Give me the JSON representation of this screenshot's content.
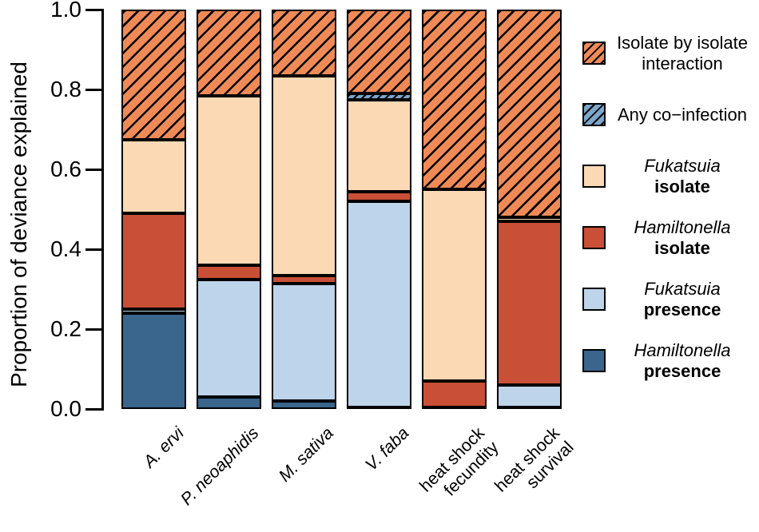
{
  "figure": {
    "y_axis": {
      "title": "Proportion of deviance explained",
      "tick_labels": [
        "0.0",
        "0.2",
        "0.4",
        "0.6",
        "0.8",
        "1.0"
      ]
    },
    "colors": {
      "hamiltonella_presence": "#3A658C",
      "fukatsuia_presence": "#BED4EA",
      "hamiltonella_isolate": "#C94F36",
      "fukatsuia_isolate": "#FBD9B5",
      "any_coinfection": "#7BA7CC",
      "isolate_interaction": "#EF8A57",
      "stroke": "#000000"
    },
    "legend": {
      "items": [
        {
          "key": "isolate-by-isolate-interaction",
          "swatch": "hatched",
          "swatch_color": "#EF8A57",
          "lines": [
            {
              "text": "Isolate by isolate"
            },
            {
              "text": "interaction"
            }
          ]
        },
        {
          "key": "any-co-infection",
          "swatch": "hatched",
          "swatch_color": "#7BA7CC",
          "lines": [
            {
              "text": "Any co−infection"
            }
          ]
        },
        {
          "key": "fukatsuia-isolate",
          "swatch": "solid",
          "swatch_color": "#FBD9B5",
          "lines": [
            {
              "text": "Fukatsuia",
              "italic": true
            },
            {
              "text": "isolate",
              "bold": true
            }
          ]
        },
        {
          "key": "hamiltonella-isolate",
          "swatch": "solid",
          "swatch_color": "#C94F36",
          "lines": [
            {
              "text": "Hamiltonella",
              "italic": true
            },
            {
              "text": "isolate",
              "bold": true
            }
          ]
        },
        {
          "key": "fukatsuia-presence",
          "swatch": "solid",
          "swatch_color": "#BED4EA",
          "lines": [
            {
              "text": "Fukatsuia",
              "italic": true
            },
            {
              "text": "presence",
              "bold": true
            }
          ]
        },
        {
          "key": "hamiltonella-presence",
          "swatch": "solid",
          "swatch_color": "#3A658C",
          "lines": [
            {
              "text": "Hamiltonella",
              "italic": true
            },
            {
              "text": "presence",
              "bold": true
            }
          ]
        }
      ]
    }
  },
  "chart_data": {
    "type": "bar",
    "stacked": true,
    "title": "",
    "xlabel": "",
    "ylabel": "Proportion of deviance explained",
    "ylim": [
      0,
      1.0
    ],
    "yticks": [
      0,
      0.2,
      0.4,
      0.6,
      0.8,
      1.0
    ],
    "grid": false,
    "legend_position": "right",
    "categories": [
      "A. ervi",
      "P. neoaphidis",
      "M. sativa",
      "V. faba",
      "heat shock fecundity",
      "heat shock survival"
    ],
    "category_labels": [
      {
        "lines": [
          "A. ervi"
        ],
        "italic": true
      },
      {
        "lines": [
          "P. neoaphidis"
        ],
        "italic": true
      },
      {
        "lines": [
          "M. sativa"
        ],
        "italic": true
      },
      {
        "lines": [
          "V. faba"
        ],
        "italic": true
      },
      {
        "lines": [
          "heat shock",
          "fecundity"
        ],
        "italic": false
      },
      {
        "lines": [
          "heat shock",
          "survival"
        ],
        "italic": false
      }
    ],
    "series": [
      {
        "name": "Hamiltonella presence",
        "color": "#3A658C",
        "pattern": "solid",
        "values": [
          0.24,
          0.03,
          0.02,
          0.005,
          0.005,
          0.005
        ]
      },
      {
        "name": "Fukatsuia presence",
        "color": "#BED4EA",
        "pattern": "solid",
        "values": [
          0.01,
          0.295,
          0.295,
          0.515,
          0,
          0.055
        ]
      },
      {
        "name": "Hamiltonella isolate",
        "color": "#C94F36",
        "pattern": "solid",
        "values": [
          0.24,
          0.035,
          0.02,
          0.025,
          0.065,
          0.41
        ]
      },
      {
        "name": "Fukatsuia isolate",
        "color": "#FBD9B5",
        "pattern": "solid",
        "values": [
          0.185,
          0.425,
          0.5,
          0.23,
          0.48,
          0.01
        ]
      },
      {
        "name": "Any co-infection",
        "color": "#7BA7CC",
        "pattern": "hatched-fine",
        "values": [
          0,
          0,
          0,
          0.015,
          0,
          0
        ]
      },
      {
        "name": "Isolate by isolate interaction",
        "color": "#EF8A57",
        "pattern": "hatched",
        "values": [
          0.325,
          0.215,
          0.165,
          0.21,
          0.45,
          0.52
        ]
      }
    ]
  }
}
